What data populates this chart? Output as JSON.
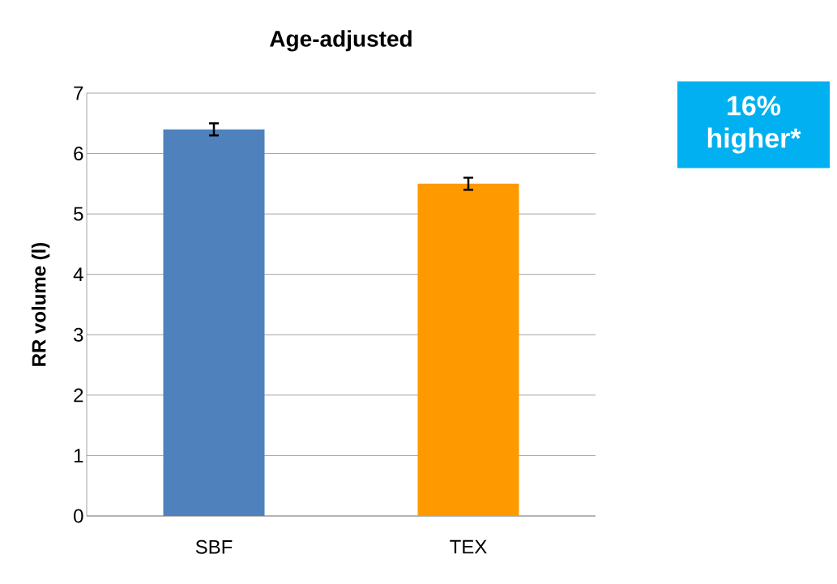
{
  "chart_data": {
    "type": "bar",
    "title": "Age-adjusted",
    "ylabel": "RR volume (l)",
    "categories": [
      "SBF",
      "TEX"
    ],
    "values": [
      6.4,
      5.5
    ],
    "colors": [
      "#4f81bd",
      "#ff9900"
    ],
    "errors": [
      0.1,
      0.1
    ],
    "ylim": [
      0,
      7
    ],
    "yticks": [
      0,
      1,
      2,
      3,
      4,
      5,
      6,
      7
    ],
    "grid": "y",
    "annotations": [
      "16% higher*"
    ]
  }
}
